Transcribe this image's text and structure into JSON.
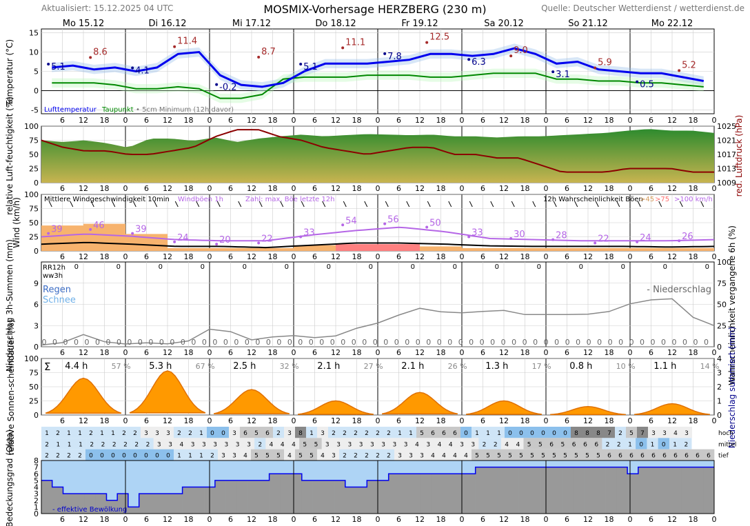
{
  "header": {
    "updated": "Aktualisiert: 15.12.2025 04 UTC",
    "title": "MOSMIX-Vorhersage HERZBERG (230 m)",
    "source": "Quelle: Deutscher Wetterdienst / wetterdienst.de"
  },
  "days": [
    "Mo 15.12",
    "Di 16.12",
    "Mi 17.12",
    "Do 18.12",
    "Fr 19.12",
    "Sa 20.12",
    "So 21.12",
    "Mo 22.12"
  ],
  "hour_ticks": [
    "6",
    "12",
    "18",
    "0"
  ],
  "colors": {
    "temp": "#0000ee",
    "dew": "#008800",
    "pressure": "#8b0000",
    "gust": "#b566e6",
    "sun": "#ff9900",
    "cloudSky": "#aed4f5",
    "cloudGrey": "#999999",
    "windFill": "#f7b36e",
    "windFillHi": "#ff8080"
  },
  "chart_data": [
    {
      "type": "line",
      "panel": "temperature",
      "ylabel": "Temperatur (°C)",
      "ylim": [
        -6,
        16
      ],
      "yticks": [
        -5,
        0,
        5,
        10,
        15
      ],
      "legend": [
        "Lufttemperatur",
        "Taupunkt",
        "• 5cm Minimum (12h davor)"
      ],
      "series": [
        {
          "name": "Lufttemperatur",
          "x_hours": [
            0,
            6,
            12,
            18,
            24,
            30,
            36,
            42,
            48,
            54,
            60,
            66,
            72,
            78,
            84,
            90,
            96,
            102,
            108,
            114,
            120,
            126,
            132,
            138,
            144,
            150,
            156,
            162,
            168,
            174,
            180,
            186
          ],
          "values": [
            6,
            6.5,
            5.5,
            6,
            5,
            6,
            9.5,
            10,
            4,
            1.5,
            1,
            2,
            5,
            7,
            7,
            7,
            7.5,
            8,
            9.5,
            9.5,
            9,
            9.5,
            11,
            9.5,
            7,
            7.5,
            5.5,
            5,
            4.5,
            4.5,
            3.5,
            2.5
          ]
        },
        {
          "name": "Taupunkt",
          "x_hours": [
            0,
            6,
            12,
            18,
            24,
            30,
            36,
            42,
            48,
            54,
            60,
            66,
            72,
            78,
            84,
            90,
            96,
            102,
            108,
            114,
            120,
            126,
            132,
            138,
            144,
            150,
            156,
            162,
            168,
            174,
            180,
            186
          ],
          "values": [
            2,
            2,
            2,
            1.5,
            0.5,
            0.5,
            1,
            0.5,
            -2,
            -2,
            -1,
            3,
            3.5,
            3.5,
            3.5,
            4,
            4,
            4,
            3.5,
            3.5,
            4,
            4.5,
            4.5,
            4.5,
            3,
            3,
            2.5,
            2.5,
            2,
            2,
            1.5,
            1
          ]
        }
      ],
      "labels_max": [
        {
          "x_hours": 14,
          "value": "8.6"
        },
        {
          "x_hours": 38,
          "value": "11.4"
        },
        {
          "x_hours": 62,
          "value": "8.7"
        },
        {
          "x_hours": 86,
          "value": "11.1"
        },
        {
          "x_hours": 110,
          "value": "12.5"
        },
        {
          "x_hours": 134,
          "value": "9.0"
        },
        {
          "x_hours": 158,
          "value": "5.9"
        },
        {
          "x_hours": 182,
          "value": "5.2"
        }
      ],
      "labels_min": [
        {
          "x_hours": 2,
          "value": "5.1"
        },
        {
          "x_hours": 26,
          "value": "4.1"
        },
        {
          "x_hours": 50,
          "value": "-0.2"
        },
        {
          "x_hours": 74,
          "value": "5.1"
        },
        {
          "x_hours": 98,
          "value": "7.8"
        },
        {
          "x_hours": 122,
          "value": "6.3"
        },
        {
          "x_hours": 146,
          "value": "3.1"
        },
        {
          "x_hours": 170,
          "value": "0.5"
        }
      ]
    },
    {
      "type": "area",
      "panel": "humidity",
      "ylabel": "relative Luft-feuchtigkeit (%)",
      "y2label": "red. Luftdruck (hPa)",
      "ylim": [
        0,
        100
      ],
      "yticks": [
        0,
        25,
        50,
        75,
        100
      ],
      "y2ticks": [
        1009,
        1013,
        1017,
        1021,
        1025
      ],
      "series": [
        {
          "name": "relative Luftfeuchtigkeit",
          "values": [
            75,
            72,
            75,
            70,
            62,
            78,
            78,
            74,
            80,
            72,
            78,
            82,
            85,
            82,
            84,
            86,
            85,
            84,
            85,
            82,
            82,
            80,
            82,
            82,
            84,
            86,
            88,
            92,
            95,
            92,
            92,
            88
          ]
        },
        {
          "name": "red. Luftdruck",
          "values": [
            1021,
            1019,
            1018,
            1018,
            1017,
            1017,
            1018,
            1019,
            1022,
            1024,
            1024,
            1022,
            1021,
            1019,
            1018,
            1017,
            1018,
            1019,
            1019,
            1017,
            1017,
            1016,
            1016,
            1014,
            1012,
            1012,
            1012,
            1013,
            1013,
            1013,
            1012,
            1012
          ]
        }
      ]
    },
    {
      "type": "bar",
      "panel": "wind",
      "ylabel": "Wind (km/h)",
      "ylim": [
        0,
        100
      ],
      "yticks": [
        0,
        25,
        50,
        75,
        100
      ],
      "legend": [
        "Mittlere Windgeschwindigkeit 10min",
        "Windböen 1h",
        "Zahl: max. Böe letzte 12h",
        "12h Wahrscheinlichkeit Böen",
        ">45",
        ">75",
        ">100 km/h"
      ],
      "max_gusts": [
        {
          "x_hours": 2,
          "value": "39"
        },
        {
          "x_hours": 14,
          "value": "46"
        },
        {
          "x_hours": 26,
          "value": "39"
        },
        {
          "x_hours": 38,
          "value": "24"
        },
        {
          "x_hours": 50,
          "value": "20"
        },
        {
          "x_hours": 62,
          "value": "22"
        },
        {
          "x_hours": 74,
          "value": "33"
        },
        {
          "x_hours": 86,
          "value": "54"
        },
        {
          "x_hours": 98,
          "value": "56"
        },
        {
          "x_hours": 110,
          "value": "50"
        },
        {
          "x_hours": 122,
          "value": "33"
        },
        {
          "x_hours": 134,
          "value": "30"
        },
        {
          "x_hours": 146,
          "value": "28"
        },
        {
          "x_hours": 158,
          "value": "22"
        },
        {
          "x_hours": 170,
          "value": "24"
        },
        {
          "x_hours": 182,
          "value": "26"
        }
      ],
      "gust_prob_45": [
        45,
        48,
        30,
        5,
        5,
        5,
        10,
        10,
        8,
        8,
        5,
        5,
        5,
        5,
        5,
        5
      ],
      "gust_prob_75": [
        0,
        0,
        0,
        0,
        0,
        0,
        0,
        12,
        12,
        0,
        0,
        0,
        0,
        0,
        0,
        0
      ],
      "mean_wind": [
        12,
        15,
        12,
        8,
        8,
        6,
        10,
        14,
        14,
        12,
        9,
        8,
        8,
        8,
        7,
        8
      ],
      "gusts": [
        25,
        30,
        26,
        20,
        18,
        18,
        28,
        36,
        42,
        34,
        22,
        20,
        18,
        18,
        18,
        20
      ]
    },
    {
      "type": "line",
      "panel": "precipitation",
      "ylabel": "Niederschlag 3h-Summen (mm)",
      "y2label": "Wahrscheinlichkeit vergangene 6h (%)",
      "ylim": [
        0,
        12
      ],
      "yticks": [
        0,
        3,
        6,
        9
      ],
      "y2ticks": [
        0,
        25,
        50,
        75,
        100
      ],
      "labels": {
        "rr": "RR12h",
        "ww": "ww3h",
        "rain": "Regen",
        "snow": "Schnee",
        "legend": "- Niederschlag"
      },
      "rr12h": [
        "0",
        "0",
        "0",
        "0",
        "0",
        "0",
        "0",
        "0",
        "0",
        "0",
        "0",
        "0",
        "0",
        "0",
        "0",
        "0"
      ],
      "rr3h": [
        "0",
        "0",
        "0",
        "0",
        "0",
        "0",
        "0",
        "0",
        "0",
        "0",
        "0",
        "0",
        "0",
        "0",
        "0",
        "0",
        "0",
        "0",
        "0",
        "0",
        "0",
        "0",
        "0",
        "0",
        "0",
        "0",
        "0",
        "0",
        "0",
        "0",
        "0",
        "0",
        "0",
        "0",
        "0",
        "0",
        "0",
        "0",
        "0",
        "0",
        "0",
        "0",
        "0",
        "0",
        "0",
        "0",
        "0",
        "0",
        "0",
        "0",
        "0",
        "0",
        "0",
        "0",
        "0",
        "0",
        "0",
        "0",
        "0",
        "0",
        "0",
        "0",
        "0"
      ],
      "probability": [
        2,
        5,
        15,
        5,
        3,
        5,
        3,
        8,
        25,
        15,
        5,
        15,
        12,
        10,
        15,
        28,
        28,
        48,
        42,
        40,
        40,
        45,
        38,
        38,
        38,
        38,
        40,
        50,
        55,
        58,
        35,
        25
      ]
    },
    {
      "type": "area",
      "panel": "sunshine",
      "ylabel": "relative Sonnen-scheindauer (%)",
      "y2label": "Niederschlag summiert (mm)",
      "ylim": [
        0,
        100
      ],
      "yticks": [
        0,
        25,
        50,
        75,
        100
      ],
      "y2ticks": [
        0,
        1,
        2,
        3,
        4
      ],
      "sum_symbol": "Σ",
      "daily": [
        {
          "hours": "4.4 h",
          "pct": "57 %",
          "peak": 65
        },
        {
          "hours": "5.3 h",
          "pct": "67 %",
          "peak": 78
        },
        {
          "hours": "2.5 h",
          "pct": "32 %",
          "peak": 45
        },
        {
          "hours": "2.1 h",
          "pct": "27 %",
          "peak": 25
        },
        {
          "hours": "2.1 h",
          "pct": "26 %",
          "peak": 40
        },
        {
          "hours": "1.3 h",
          "pct": "17 %",
          "peak": 25
        },
        {
          "hours": "0.8 h",
          "pct": "10 %",
          "peak": 15
        },
        {
          "hours": "1.1 h",
          "pct": "14 %",
          "peak": 20
        }
      ]
    },
    {
      "type": "heatmap",
      "panel": "cloud",
      "ylabel": "Bedeckungsgrad (Okta)",
      "ylim": [
        0,
        8
      ],
      "yticks": [
        0,
        1,
        2,
        3,
        4,
        5,
        6,
        7,
        8
      ],
      "rows": [
        "hoch",
        "mittel",
        "tief"
      ],
      "hoch": [
        "1",
        "2",
        "1",
        "1",
        "2",
        "1",
        "1",
        "2",
        "2",
        "3",
        "3",
        "3",
        "2",
        "2",
        "1",
        "0",
        "0",
        "3",
        "6",
        "5",
        "6",
        "2",
        "3",
        "8",
        "1",
        "3",
        "2",
        "2",
        "2",
        "2",
        "2",
        "2",
        "1",
        "1",
        "5",
        "6",
        "6",
        "6",
        "0",
        "1",
        "1",
        "1",
        "0",
        "0",
        "0",
        "0",
        "0",
        "0",
        "8",
        "8",
        "8",
        "7",
        "2",
        "5",
        "7",
        "3",
        "3",
        "4",
        "3",
        "",
        ""
      ],
      "mittel": [
        "2",
        "1",
        "1",
        "1",
        "2",
        "2",
        "2",
        "2",
        "2",
        "2",
        "3",
        "3",
        "4",
        "3",
        "3",
        "3",
        "3",
        "3",
        "3",
        "2",
        "4",
        "4",
        "4",
        "5",
        "5",
        "3",
        "3",
        "3",
        "3",
        "3",
        "3",
        "3",
        "3",
        "4",
        "3",
        "4",
        "4",
        "3",
        "3",
        "2",
        "2",
        "4",
        "4",
        "5",
        "5",
        "6",
        "5",
        "6",
        "6",
        "6",
        "2",
        "2",
        "1",
        "0",
        "1",
        "0",
        "1",
        "2",
        "",
        ""
      ],
      "tief": [
        "2",
        "2",
        "2",
        "2",
        "0",
        "0",
        "0",
        "0",
        "0",
        "0",
        "0",
        "0",
        "1",
        "1",
        "1",
        "2",
        "3",
        "3",
        "4",
        "5",
        "5",
        "5",
        "4",
        "5",
        "5",
        "4",
        "3",
        "2",
        "2",
        "2",
        "2",
        "2",
        "3",
        "3",
        "3",
        "4",
        "4",
        "4",
        "4",
        "5",
        "5",
        "5",
        "5",
        "5",
        "5",
        "5",
        "5",
        "5",
        "5",
        "5",
        "5",
        "6",
        "6",
        "6",
        "6",
        "6",
        "6",
        "6",
        "6",
        "6",
        "6"
      ],
      "effective": [
        5,
        4,
        3,
        3,
        3,
        3,
        2,
        3,
        1,
        3,
        3,
        3,
        3,
        4,
        4,
        4,
        5,
        5,
        5,
        5,
        5,
        6,
        6,
        6,
        5,
        5,
        5,
        5,
        4,
        4,
        5,
        5,
        6,
        6,
        6,
        6,
        6,
        6,
        6,
        6,
        7,
        7,
        7,
        7,
        7,
        7,
        7,
        7,
        7,
        7,
        7,
        7,
        7,
        7,
        6,
        7,
        7,
        7,
        7,
        7,
        7,
        7
      ],
      "legend": "- effektive Bewölkung"
    }
  ]
}
